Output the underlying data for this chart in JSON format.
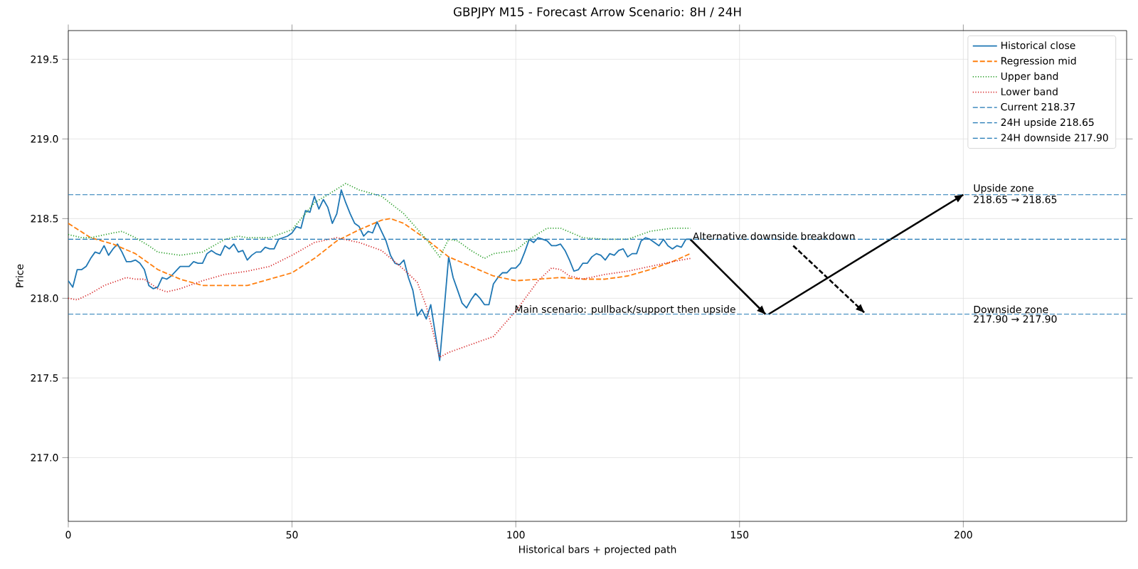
{
  "chart_data": {
    "type": "line",
    "title": "GBPJPY M15 - Forecast Arrow Scenario: 8H / 24H",
    "xlabel": "Historical bars + projected path",
    "ylabel": "Price",
    "xlim": [
      0,
      236.5
    ],
    "ylim": [
      216.6,
      219.68
    ],
    "xticks": [
      0,
      50,
      100,
      150,
      200
    ],
    "yticks": [
      {
        "value": 217.0,
        "label": "217.0"
      },
      {
        "value": 217.5,
        "label": "217.5"
      },
      {
        "value": 218.0,
        "label": "218.0"
      },
      {
        "value": 218.5,
        "label": "218.5"
      },
      {
        "value": 219.0,
        "label": "219.0"
      },
      {
        "value": 219.5,
        "label": "219.5"
      }
    ],
    "grid": true,
    "legend": "top right",
    "series": [
      {
        "name": "Historical close",
        "color": "#1f77b4",
        "line_style": "solid",
        "x": [
          0,
          1,
          2,
          3,
          4,
          5,
          6,
          7,
          8,
          9,
          10,
          11,
          12,
          13,
          14,
          15,
          16,
          17,
          18,
          19,
          20,
          21,
          22,
          23,
          24,
          25,
          26,
          27,
          28,
          29,
          30,
          31,
          32,
          33,
          34,
          35,
          36,
          37,
          38,
          39,
          40,
          41,
          42,
          43,
          44,
          45,
          46,
          47,
          48,
          49,
          50,
          51,
          52,
          53,
          54,
          55,
          56,
          57,
          58,
          59,
          60,
          61,
          62,
          63,
          64,
          65,
          66,
          67,
          68,
          69,
          70,
          71,
          72,
          73,
          74,
          75,
          76,
          77,
          78,
          79,
          80,
          81,
          82,
          83,
          84,
          85,
          86,
          87,
          88,
          89,
          90,
          91,
          92,
          93,
          94,
          95,
          96,
          97,
          98,
          99,
          100,
          101,
          102,
          103,
          104,
          105,
          106,
          107,
          108,
          109,
          110,
          111,
          112,
          113,
          114,
          115,
          116,
          117,
          118,
          119,
          120,
          121,
          122,
          123,
          124,
          125,
          126,
          127,
          128,
          129,
          130,
          131,
          132,
          133,
          134,
          135,
          136,
          137,
          138,
          139
        ],
        "values": [
          218.11,
          218.07,
          218.18,
          218.18,
          218.2,
          218.25,
          218.29,
          218.28,
          218.33,
          218.27,
          218.31,
          218.34,
          218.29,
          218.23,
          218.23,
          218.24,
          218.22,
          218.18,
          218.08,
          218.06,
          218.07,
          218.13,
          218.12,
          218.14,
          218.17,
          218.2,
          218.2,
          218.2,
          218.23,
          218.22,
          218.22,
          218.28,
          218.3,
          218.28,
          218.27,
          218.33,
          218.31,
          218.34,
          218.29,
          218.3,
          218.24,
          218.27,
          218.29,
          218.29,
          218.32,
          218.31,
          218.31,
          218.37,
          218.38,
          218.39,
          218.41,
          218.45,
          218.44,
          218.55,
          218.54,
          218.64,
          218.56,
          218.62,
          218.57,
          218.47,
          218.53,
          218.68,
          218.6,
          218.53,
          218.47,
          218.45,
          218.39,
          218.42,
          218.41,
          218.48,
          218.42,
          218.36,
          218.27,
          218.22,
          218.21,
          218.24,
          218.13,
          218.05,
          217.89,
          217.93,
          217.87,
          217.96,
          217.78,
          217.61,
          217.93,
          218.26,
          218.13,
          218.05,
          217.97,
          217.94,
          217.99,
          218.03,
          218.0,
          217.96,
          217.96,
          218.09,
          218.13,
          218.16,
          218.16,
          218.19,
          218.19,
          218.22,
          218.29,
          218.37,
          218.35,
          218.38,
          218.37,
          218.36,
          218.33,
          218.33,
          218.34,
          218.3,
          218.24,
          218.17,
          218.18,
          218.22,
          218.22,
          218.26,
          218.28,
          218.27,
          218.24,
          218.28,
          218.27,
          218.3,
          218.31,
          218.26,
          218.28,
          218.28,
          218.36,
          218.38,
          218.37,
          218.35,
          218.33,
          218.37,
          218.33,
          218.31,
          218.33,
          218.32,
          218.37,
          218.37
        ]
      },
      {
        "name": "Regression mid",
        "color": "#ff7f0e",
        "line_style": "dashed",
        "x": [
          0,
          5,
          10,
          15,
          20,
          25,
          30,
          35,
          40,
          45,
          50,
          55,
          60,
          65,
          70,
          72,
          75,
          80,
          85,
          90,
          95,
          100,
          105,
          110,
          115,
          120,
          125,
          130,
          135,
          139
        ],
        "values": [
          218.47,
          218.38,
          218.34,
          218.28,
          218.18,
          218.12,
          218.08,
          218.08,
          218.08,
          218.12,
          218.16,
          218.25,
          218.36,
          218.43,
          218.49,
          218.5,
          218.47,
          218.37,
          218.26,
          218.2,
          218.14,
          218.11,
          218.12,
          218.13,
          218.12,
          218.12,
          218.14,
          218.18,
          218.23,
          218.28
        ]
      },
      {
        "name": "Upper band",
        "color": "#2ca02c",
        "line_style": "dotted",
        "x": [
          0,
          3,
          5,
          10,
          12,
          15,
          18,
          20,
          25,
          30,
          35,
          38,
          40,
          45,
          50,
          55,
          58,
          62,
          65,
          70,
          75,
          80,
          83,
          85,
          87,
          90,
          93,
          95,
          100,
          103,
          107,
          110,
          115,
          120,
          125,
          130,
          135,
          139
        ],
        "values": [
          218.4,
          218.38,
          218.38,
          218.41,
          218.42,
          218.38,
          218.33,
          218.29,
          218.27,
          218.29,
          218.37,
          218.39,
          218.38,
          218.38,
          218.43,
          218.6,
          218.65,
          218.72,
          218.68,
          218.64,
          218.53,
          218.37,
          218.26,
          218.37,
          218.36,
          218.3,
          218.25,
          218.28,
          218.3,
          218.37,
          218.44,
          218.44,
          218.38,
          218.37,
          218.37,
          218.42,
          218.44,
          218.44
        ]
      },
      {
        "name": "Lower band",
        "color": "#d62728",
        "line_style": "dotted",
        "x": [
          0,
          2,
          5,
          8,
          10,
          13,
          15,
          17,
          20,
          22,
          25,
          30,
          35,
          40,
          45,
          50,
          55,
          60,
          65,
          70,
          75,
          78,
          80,
          83,
          85,
          90,
          95,
          100,
          105,
          108,
          110,
          112,
          115,
          120,
          125,
          130,
          135,
          139
        ],
        "values": [
          218.0,
          217.99,
          218.03,
          218.08,
          218.1,
          218.13,
          218.12,
          218.12,
          218.06,
          218.04,
          218.06,
          218.11,
          218.15,
          218.17,
          218.2,
          218.27,
          218.35,
          218.38,
          218.35,
          218.3,
          218.18,
          218.1,
          217.95,
          217.63,
          217.66,
          217.71,
          217.76,
          217.92,
          218.11,
          218.19,
          218.18,
          218.14,
          218.12,
          218.15,
          218.17,
          218.2,
          218.23,
          218.25
        ]
      },
      {
        "color": "#000000",
        "line_style": "solid",
        "x": [
          139,
          155.8
        ],
        "values": [
          218.37,
          217.9
        ]
      },
      {
        "color": "#000000",
        "line_style": "solid",
        "x": [
          156.5,
          200
        ],
        "values": [
          217.9,
          218.65
        ]
      },
      {
        "color": "#000000",
        "line_style": "dashed",
        "x": [
          162,
          177.9
        ],
        "values": [
          218.33,
          217.91
        ]
      }
    ],
    "ref_lines": [
      {
        "axis": "y",
        "value": 218.37,
        "label": "Current 218.37",
        "color": "#1f77b4",
        "line_style": "dashed"
      },
      {
        "axis": "y",
        "value": 218.65,
        "label": "24H upside 218.65",
        "color": "#1f77b4",
        "line_style": "dashed"
      },
      {
        "axis": "y",
        "value": 217.9,
        "label": "24H downside 217.90",
        "color": "#1f77b4",
        "line_style": "dashed"
      }
    ],
    "annotations": [
      {
        "text": "Alternative downside breakdown",
        "x": 139.3,
        "y": 218.36
      },
      {
        "text": "Main scenario: pullback/support then upside",
        "x": 99.5,
        "y": 217.89
      },
      {
        "text": "Upside zone",
        "x": 202,
        "y": 218.65
      },
      "218.65 → 218.65",
      {
        "text": "Downside zone",
        "x": 202,
        "y": 217.9
      },
      "217.90 → 217.90"
    ]
  }
}
